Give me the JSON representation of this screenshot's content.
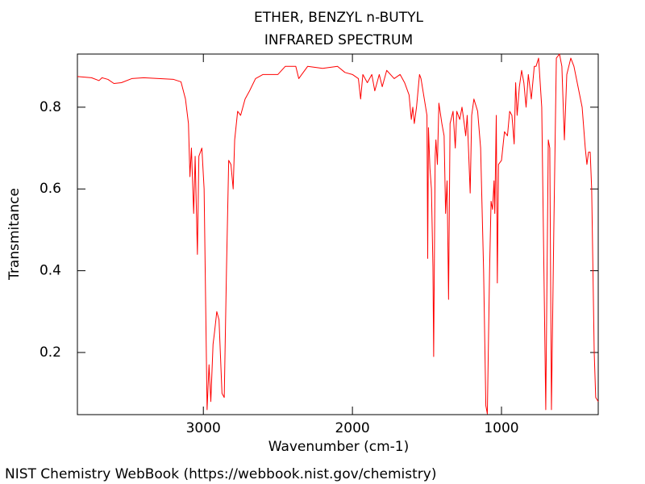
{
  "chart_data": {
    "type": "line",
    "title": "ETHER, BENZYL n-BUTYL",
    "subtitle": "INFRARED SPECTRUM",
    "x_label": "Wavenumber (cm-1)",
    "y_label": "Transmitance",
    "source": "NIST Chemistry WebBook (https://webbook.nist.gov/chemistry)",
    "color": "#ff0000",
    "xlim": [
      3845,
      351
    ],
    "ylim": [
      0.048,
      0.93
    ],
    "xticks": [
      3000,
      2000,
      1000
    ],
    "yticks": [
      0.2,
      0.4,
      0.6,
      0.8
    ],
    "x": [
      3845,
      3750,
      3700,
      3680,
      3640,
      3600,
      3550,
      3480,
      3400,
      3300,
      3200,
      3150,
      3120,
      3100,
      3090,
      3080,
      3065,
      3055,
      3040,
      3030,
      3010,
      2995,
      2975,
      2962,
      2950,
      2935,
      2925,
      2910,
      2895,
      2875,
      2860,
      2845,
      2830,
      2815,
      2800,
      2790,
      2770,
      2750,
      2720,
      2690,
      2650,
      2600,
      2500,
      2450,
      2380,
      2360,
      2340,
      2300,
      2200,
      2100,
      2050,
      2000,
      1960,
      1945,
      1930,
      1900,
      1870,
      1850,
      1820,
      1800,
      1770,
      1720,
      1680,
      1650,
      1620,
      1605,
      1595,
      1585,
      1570,
      1550,
      1540,
      1500,
      1495,
      1490,
      1480,
      1470,
      1460,
      1455,
      1445,
      1440,
      1430,
      1420,
      1400,
      1385,
      1375,
      1365,
      1355,
      1345,
      1325,
      1310,
      1300,
      1280,
      1265,
      1250,
      1240,
      1230,
      1210,
      1200,
      1185,
      1160,
      1140,
      1120,
      1105,
      1095,
      1080,
      1070,
      1060,
      1050,
      1045,
      1035,
      1028,
      1020,
      1000,
      980,
      960,
      945,
      930,
      915,
      905,
      895,
      880,
      865,
      850,
      835,
      820,
      800,
      780,
      768,
      751,
      730,
      703,
      686,
      676,
      665,
      649,
      632,
      611,
      595,
      578,
      562,
      535,
      514,
      492,
      459,
      438,
      427,
      416,
      405,
      395,
      378,
      368,
      351
    ],
    "values": [
      0.875,
      0.872,
      0.865,
      0.872,
      0.868,
      0.858,
      0.86,
      0.87,
      0.872,
      0.87,
      0.868,
      0.862,
      0.82,
      0.76,
      0.63,
      0.7,
      0.54,
      0.68,
      0.44,
      0.68,
      0.7,
      0.6,
      0.06,
      0.17,
      0.08,
      0.22,
      0.25,
      0.3,
      0.28,
      0.1,
      0.09,
      0.4,
      0.67,
      0.66,
      0.6,
      0.72,
      0.79,
      0.78,
      0.82,
      0.84,
      0.87,
      0.88,
      0.88,
      0.9,
      0.9,
      0.87,
      0.88,
      0.9,
      0.895,
      0.9,
      0.885,
      0.88,
      0.87,
      0.82,
      0.88,
      0.86,
      0.88,
      0.84,
      0.88,
      0.85,
      0.89,
      0.87,
      0.88,
      0.86,
      0.83,
      0.77,
      0.8,
      0.76,
      0.8,
      0.88,
      0.87,
      0.78,
      0.43,
      0.75,
      0.65,
      0.6,
      0.41,
      0.19,
      0.68,
      0.72,
      0.66,
      0.81,
      0.76,
      0.73,
      0.54,
      0.62,
      0.33,
      0.76,
      0.79,
      0.7,
      0.79,
      0.77,
      0.8,
      0.76,
      0.73,
      0.78,
      0.59,
      0.78,
      0.82,
      0.79,
      0.7,
      0.4,
      0.07,
      0.05,
      0.4,
      0.57,
      0.55,
      0.62,
      0.54,
      0.78,
      0.37,
      0.66,
      0.67,
      0.74,
      0.73,
      0.79,
      0.78,
      0.71,
      0.86,
      0.78,
      0.85,
      0.89,
      0.86,
      0.8,
      0.88,
      0.82,
      0.9,
      0.9,
      0.92,
      0.8,
      0.06,
      0.72,
      0.7,
      0.06,
      0.5,
      0.92,
      0.93,
      0.9,
      0.72,
      0.88,
      0.92,
      0.9,
      0.86,
      0.8,
      0.7,
      0.66,
      0.69,
      0.69,
      0.6,
      0.2,
      0.09,
      0.08
    ]
  }
}
